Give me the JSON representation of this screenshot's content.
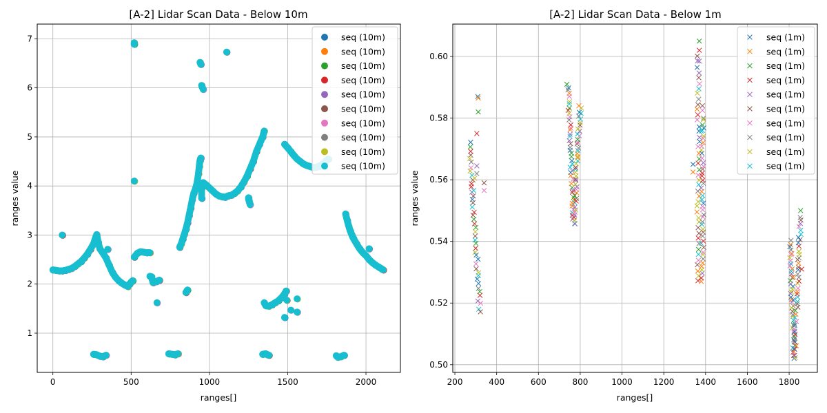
{
  "chart_data": [
    {
      "type": "scatter",
      "title": "[A-2] Lidar Scan Data - Below 10m",
      "xlabel": "ranges[]",
      "ylabel": "ranges value",
      "xlim": [
        -100,
        2220
      ],
      "ylim": [
        0.2,
        7.3
      ],
      "xticks": [
        0,
        500,
        1000,
        1500,
        2000
      ],
      "yticks": [
        1,
        2,
        3,
        4,
        5,
        6,
        7
      ],
      "grid": true,
      "legend": "top-right",
      "marker": "circle",
      "series_names": [
        "seq (10m)",
        "seq (10m)",
        "seq (10m)",
        "seq (10m)",
        "seq (10m)",
        "seq (10m)",
        "seq (10m)",
        "seq (10m)",
        "seq (10m)",
        "seq (10m)"
      ],
      "series_colors": [
        "#1f77b4",
        "#ff7f0e",
        "#2ca02c",
        "#d62728",
        "#9467bd",
        "#8c564b",
        "#e377c2",
        "#7f7f7f",
        "#bcbd22",
        "#17becf"
      ],
      "points": [
        [
          0,
          2.29
        ],
        [
          20,
          2.28
        ],
        [
          40,
          2.27
        ],
        [
          60,
          2.27
        ],
        [
          80,
          2.28
        ],
        [
          100,
          2.3
        ],
        [
          120,
          2.32
        ],
        [
          140,
          2.36
        ],
        [
          160,
          2.41
        ],
        [
          180,
          2.46
        ],
        [
          200,
          2.53
        ],
        [
          220,
          2.61
        ],
        [
          240,
          2.71
        ],
        [
          260,
          2.82
        ],
        [
          270,
          2.92
        ],
        [
          280,
          3.01
        ],
        [
          290,
          2.85
        ],
        [
          300,
          2.72
        ],
        [
          320,
          2.63
        ],
        [
          340,
          2.53
        ],
        [
          360,
          2.38
        ],
        [
          380,
          2.24
        ],
        [
          400,
          2.14
        ],
        [
          420,
          2.07
        ],
        [
          440,
          2.02
        ],
        [
          460,
          1.98
        ],
        [
          480,
          1.95
        ],
        [
          490,
          2.0
        ],
        [
          500,
          2.04
        ],
        [
          510,
          2.07
        ],
        [
          60,
          3.0
        ],
        [
          350,
          2.71
        ],
        [
          520,
          2.55
        ],
        [
          540,
          2.63
        ],
        [
          560,
          2.66
        ],
        [
          580,
          2.65
        ],
        [
          600,
          2.64
        ],
        [
          620,
          2.64
        ],
        [
          630,
          2.15
        ],
        [
          640,
          2.03
        ],
        [
          660,
          2.05
        ],
        [
          680,
          2.08
        ],
        [
          665,
          1.62
        ],
        [
          810,
          2.75
        ],
        [
          820,
          2.82
        ],
        [
          830,
          2.92
        ],
        [
          840,
          3.02
        ],
        [
          850,
          3.12
        ],
        [
          860,
          3.25
        ],
        [
          870,
          3.4
        ],
        [
          880,
          3.55
        ],
        [
          890,
          3.72
        ],
        [
          900,
          3.85
        ],
        [
          910,
          3.93
        ],
        [
          920,
          4.05
        ],
        [
          930,
          4.25
        ],
        [
          935,
          4.4
        ],
        [
          940,
          4.52
        ],
        [
          945,
          4.57
        ],
        [
          955,
          3.98
        ],
        [
          960,
          4.07
        ],
        [
          980,
          4.02
        ],
        [
          1000,
          3.96
        ],
        [
          1020,
          3.9
        ],
        [
          1040,
          3.84
        ],
        [
          1060,
          3.8
        ],
        [
          1080,
          3.78
        ],
        [
          1100,
          3.77
        ],
        [
          1120,
          3.8
        ],
        [
          1140,
          3.81
        ],
        [
          1160,
          3.85
        ],
        [
          1180,
          3.9
        ],
        [
          1200,
          3.98
        ],
        [
          1220,
          4.08
        ],
        [
          1240,
          4.2
        ],
        [
          1260,
          4.35
        ],
        [
          1280,
          4.5
        ],
        [
          1300,
          4.7
        ],
        [
          1320,
          4.85
        ],
        [
          1340,
          5.0
        ],
        [
          1350,
          5.12
        ],
        [
          1480,
          4.85
        ],
        [
          1500,
          4.78
        ],
        [
          1520,
          4.7
        ],
        [
          1540,
          4.62
        ],
        [
          1560,
          4.55
        ],
        [
          1580,
          4.5
        ],
        [
          1600,
          4.45
        ],
        [
          1620,
          4.42
        ],
        [
          1640,
          4.4
        ],
        [
          1660,
          4.38
        ],
        [
          1680,
          4.38
        ],
        [
          1700,
          4.4
        ],
        [
          1720,
          4.44
        ],
        [
          1740,
          4.5
        ],
        [
          1760,
          4.55
        ],
        [
          1870,
          3.43
        ],
        [
          1880,
          3.3
        ],
        [
          1890,
          3.18
        ],
        [
          1900,
          3.08
        ],
        [
          1910,
          3.0
        ],
        [
          1920,
          2.93
        ],
        [
          1940,
          2.82
        ],
        [
          1960,
          2.72
        ],
        [
          1980,
          2.64
        ],
        [
          2000,
          2.58
        ],
        [
          2020,
          2.5
        ],
        [
          2040,
          2.44
        ],
        [
          2060,
          2.39
        ],
        [
          2080,
          2.35
        ],
        [
          2100,
          2.31
        ],
        [
          2110,
          2.29
        ],
        [
          2020,
          2.72
        ],
        [
          2090,
          2.33
        ],
        [
          1350,
          1.62
        ],
        [
          1360,
          1.56
        ],
        [
          1380,
          1.55
        ],
        [
          1400,
          1.58
        ],
        [
          1420,
          1.62
        ],
        [
          1440,
          1.66
        ],
        [
          1460,
          1.72
        ],
        [
          1480,
          1.8
        ],
        [
          1490,
          1.86
        ],
        [
          1520,
          1.47
        ],
        [
          1560,
          1.43
        ],
        [
          1560,
          1.7
        ],
        [
          1480,
          1.32
        ],
        [
          1495,
          1.67
        ],
        [
          260,
          0.57
        ],
        [
          280,
          0.56
        ],
        [
          300,
          0.53
        ],
        [
          320,
          0.52
        ],
        [
          340,
          0.55
        ],
        [
          740,
          0.58
        ],
        [
          760,
          0.57
        ],
        [
          780,
          0.56
        ],
        [
          800,
          0.58
        ],
        [
          1340,
          0.57
        ],
        [
          1360,
          0.58
        ],
        [
          1370,
          0.56
        ],
        [
          1380,
          0.55
        ],
        [
          1810,
          0.54
        ],
        [
          1820,
          0.51
        ],
        [
          1840,
          0.52
        ],
        [
          1860,
          0.55
        ],
        [
          520,
          6.92
        ],
        [
          520,
          6.89
        ],
        [
          940,
          6.52
        ],
        [
          945,
          6.48
        ],
        [
          950,
          6.05
        ],
        [
          960,
          5.97
        ],
        [
          1110,
          6.73
        ],
        [
          520,
          4.1
        ],
        [
          950,
          3.75
        ],
        [
          950,
          3.95
        ],
        [
          860,
          1.88
        ],
        [
          850,
          1.83
        ],
        [
          620,
          2.16
        ],
        [
          1250,
          3.73
        ],
        [
          1260,
          3.62
        ],
        [
          1250,
          3.76
        ]
      ]
    },
    {
      "type": "scatter",
      "title": "[A-2] Lidar Scan Data - Below 1m",
      "xlabel": "ranges[]",
      "ylabel": "ranges value",
      "xlim": [
        190,
        1935
      ],
      "ylim": [
        0.4975,
        0.6105
      ],
      "xticks": [
        200,
        400,
        600,
        800,
        1000,
        1200,
        1400,
        1600,
        1800
      ],
      "yticks": [
        0.5,
        0.52,
        0.54,
        0.56,
        0.58,
        0.6
      ],
      "ytick_labels": [
        "0.50",
        "0.52",
        "0.54",
        "0.56",
        "0.58",
        "0.60"
      ],
      "grid": true,
      "legend": "top-right",
      "marker": "x",
      "series_names": [
        "seq (1m)",
        "seq (1m)",
        "seq (1m)",
        "seq (1m)",
        "seq (1m)",
        "seq (1m)",
        "seq (1m)",
        "seq (1m)",
        "seq (1m)",
        "seq (1m)"
      ],
      "series_colors": [
        "#1f77b4",
        "#ff7f0e",
        "#2ca02c",
        "#d62728",
        "#9467bd",
        "#8c564b",
        "#e377c2",
        "#7f7f7f",
        "#bcbd22",
        "#17becf"
      ],
      "clusters": [
        {
          "x0": 270,
          "y0": 0.572,
          "x1": 320,
          "y1": 0.517
        },
        {
          "x0": 740,
          "y0": 0.591,
          "x1": 770,
          "y1": 0.546
        },
        {
          "x0": 770,
          "y0": 0.546,
          "x1": 800,
          "y1": 0.584
        },
        {
          "x0": 1365,
          "y0": 0.6,
          "x1": 1365,
          "y1": 0.527
        },
        {
          "x0": 1385,
          "y0": 0.527,
          "x1": 1385,
          "y1": 0.578
        },
        {
          "x0": 1805,
          "y0": 0.54,
          "x1": 1825,
          "y1": 0.502
        },
        {
          "x0": 1825,
          "y0": 0.502,
          "x1": 1855,
          "y1": 0.548
        }
      ],
      "outliers": [
        [
          310,
          0.587
        ],
        [
          312,
          0.5865
        ],
        [
          312,
          0.582
        ],
        [
          305,
          0.575
        ],
        [
          305,
          0.5645
        ],
        [
          340,
          0.559
        ],
        [
          340,
          0.5565
        ],
        [
          305,
          0.562
        ],
        [
          295,
          0.5605
        ],
        [
          290,
          0.5565
        ],
        [
          1340,
          0.565
        ],
        [
          1340,
          0.5625
        ],
        [
          1370,
          0.605
        ],
        [
          1370,
          0.602
        ],
        [
          1370,
          0.5985
        ],
        [
          1385,
          0.584
        ],
        [
          1385,
          0.5825
        ],
        [
          1390,
          0.58
        ],
        [
          1390,
          0.5795
        ],
        [
          1385,
          0.576
        ],
        [
          1820,
          0.521
        ],
        [
          1820,
          0.5285
        ],
        [
          1855,
          0.55
        ],
        [
          1860,
          0.531
        ]
      ]
    }
  ]
}
